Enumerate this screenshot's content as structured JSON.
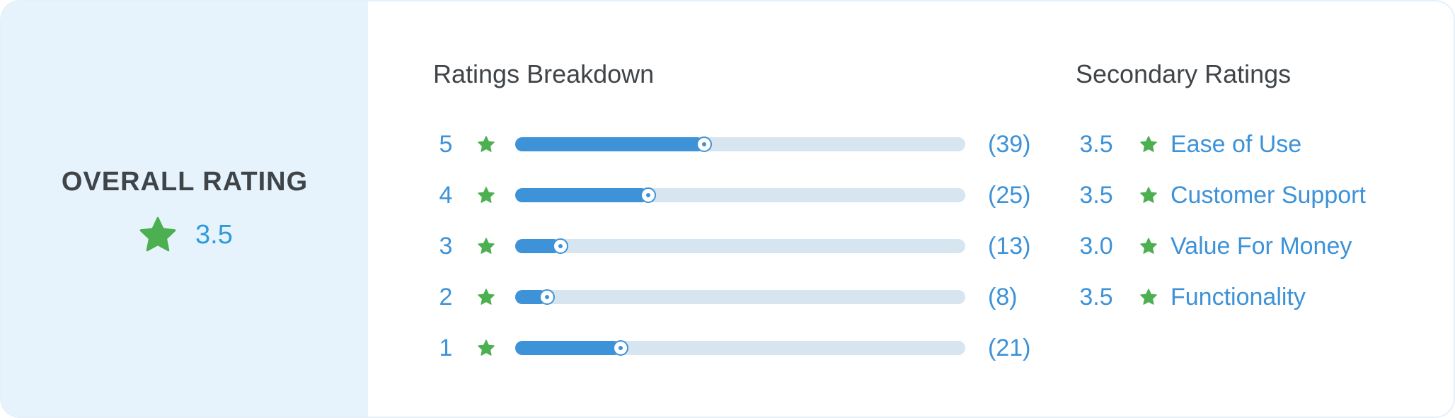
{
  "overall": {
    "title": "OVERALL RATING",
    "score": "3.5",
    "star_icon": "star-icon"
  },
  "breakdown": {
    "title": "Ratings Breakdown",
    "rows": [
      {
        "stars": "5",
        "count_label": "(39)",
        "count": 39,
        "fraction": 0.42
      },
      {
        "stars": "4",
        "count_label": "(25)",
        "count": 25,
        "fraction": 0.295
      },
      {
        "stars": "3",
        "count_label": "(13)",
        "count": 13,
        "fraction": 0.1
      },
      {
        "stars": "2",
        "count_label": "(8)",
        "count": 8,
        "fraction": 0.07
      },
      {
        "stars": "1",
        "count_label": "(21)",
        "count": 21,
        "fraction": 0.235
      }
    ]
  },
  "secondary": {
    "title": "Secondary Ratings",
    "rows": [
      {
        "score": "3.5",
        "label": "Ease of Use"
      },
      {
        "score": "3.5",
        "label": "Customer Support"
      },
      {
        "score": "3.0",
        "label": "Value For Money"
      },
      {
        "score": "3.5",
        "label": "Functionality"
      }
    ]
  },
  "colors": {
    "accent": "#3d92d8",
    "star": "#4caf50",
    "track": "#d7e5f0",
    "panel": "#e6f3fd",
    "heading": "#3f4449"
  }
}
